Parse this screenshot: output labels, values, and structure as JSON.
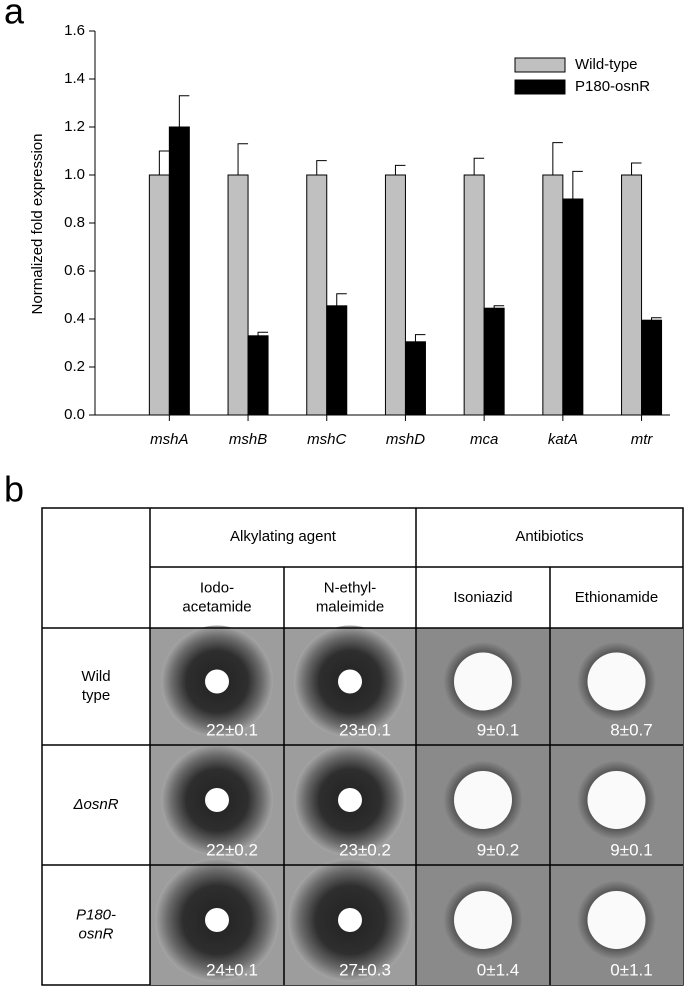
{
  "chart_data": {
    "type": "bar",
    "panel": "a",
    "ylabel": "Normalized fold expression",
    "categories": [
      "mshA",
      "mshB",
      "mshC",
      "mshD",
      "mca",
      "katA",
      "mtr"
    ],
    "series": [
      {
        "name": "Wild-type",
        "color": "#c0c0c0",
        "values": [
          1.0,
          1.0,
          1.0,
          1.0,
          1.0,
          1.0,
          1.0
        ],
        "errors": [
          0.1,
          0.13,
          0.06,
          0.04,
          0.07,
          0.135,
          0.05
        ]
      },
      {
        "name": "P180-osnR",
        "color": "#000000",
        "values": [
          1.2,
          0.33,
          0.455,
          0.305,
          0.445,
          0.9,
          0.395
        ],
        "errors": [
          0.13,
          0.015,
          0.05,
          0.03,
          0.01,
          0.115,
          0.01
        ]
      }
    ],
    "ylim": [
      0,
      1.6
    ],
    "yticks": [
      {
        "value": 0,
        "label": "0.0"
      },
      0.2,
      0.4,
      0.6,
      0.8,
      {
        "value": 1,
        "label": "1.0"
      },
      1.2,
      1.4,
      1.6
    ],
    "legend": "upper right"
  },
  "table": {
    "panel": "b",
    "groups": [
      "Alkylating agent",
      "Antibiotics"
    ],
    "columns": [
      [
        "Iodo-",
        "acetamide"
      ],
      [
        "N-ethyl-",
        "maleimide"
      ],
      [
        "Isoniazid"
      ],
      [
        "Ethionamide"
      ]
    ],
    "rows": [
      {
        "label": [
          "Wild",
          "type"
        ],
        "cells": [
          "22±0.1",
          "23±0.1",
          "9±0.1",
          "8±0.7"
        ]
      },
      {
        "label": [
          "ΔosnR"
        ],
        "cells": [
          "22±0.2",
          "23±0.2",
          "9±0.2",
          "9±0.1"
        ]
      },
      {
        "label": [
          "P180-",
          "osnR"
        ],
        "cells": [
          "24±0.1",
          "27±0.3",
          "0±1.4",
          "0±1.1"
        ]
      }
    ]
  }
}
